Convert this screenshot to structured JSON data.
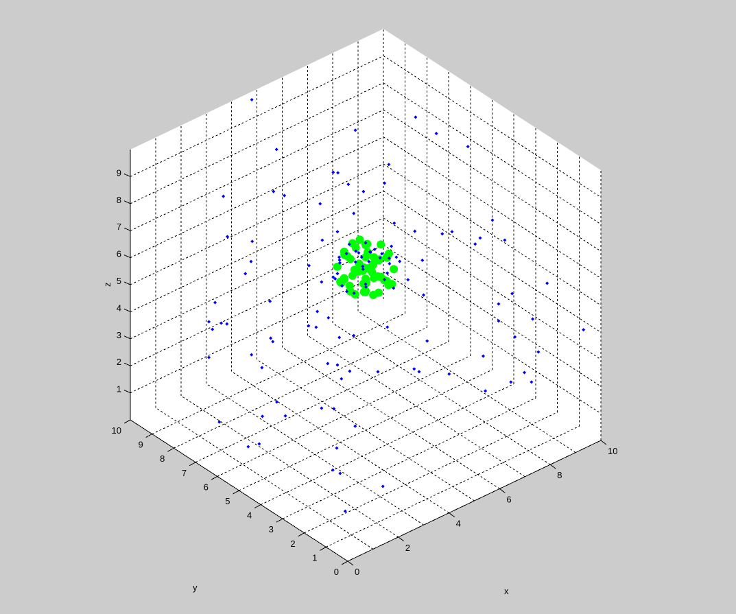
{
  "chart_data": {
    "type": "scatter3d",
    "title": "",
    "xlabel": "x",
    "ylabel": "y",
    "zlabel": "z",
    "xlim": [
      0,
      10
    ],
    "ylim": [
      0,
      10
    ],
    "zlim": [
      0,
      10
    ],
    "xticks": [
      "0",
      "2",
      "4",
      "6",
      "8",
      "10"
    ],
    "xtick_values": [
      0,
      2,
      4,
      6,
      8,
      10
    ],
    "yticks": [
      "0",
      "1",
      "2",
      "3",
      "4",
      "5",
      "6",
      "7",
      "8",
      "9",
      "10"
    ],
    "ytick_values": [
      0,
      1,
      2,
      3,
      4,
      5,
      6,
      7,
      8,
      9,
      10
    ],
    "zticks": [
      "1",
      "2",
      "3",
      "4",
      "5",
      "6",
      "7",
      "8",
      "9"
    ],
    "ztick_values": [
      1,
      2,
      3,
      4,
      5,
      6,
      7,
      8,
      9
    ],
    "grid": true,
    "view": "az -45, el 30 (origin toward viewer)",
    "series": [
      {
        "color": "#00ff00",
        "marker": "filled circle",
        "points": [
          [
            5.0,
            5.0,
            6.85
          ],
          [
            5.0,
            5.0,
            5.15
          ],
          [
            5.85,
            5.0,
            6.0
          ],
          [
            4.15,
            5.0,
            6.0
          ],
          [
            5.0,
            5.85,
            6.0
          ],
          [
            5.0,
            4.15,
            6.0
          ],
          [
            5.6,
            5.0,
            6.6
          ],
          [
            4.4,
            5.0,
            6.6
          ],
          [
            5.0,
            5.6,
            6.6
          ],
          [
            5.0,
            4.4,
            6.6
          ],
          [
            5.6,
            5.0,
            5.4
          ],
          [
            4.4,
            5.0,
            5.4
          ],
          [
            5.0,
            5.6,
            5.4
          ],
          [
            5.0,
            4.4,
            5.4
          ],
          [
            5.6,
            5.6,
            6.0
          ],
          [
            4.4,
            4.4,
            6.0
          ],
          [
            5.6,
            4.4,
            6.0
          ],
          [
            4.4,
            5.6,
            6.0
          ],
          [
            5.45,
            5.45,
            6.45
          ],
          [
            4.55,
            4.55,
            6.45
          ],
          [
            5.45,
            4.55,
            6.45
          ],
          [
            4.55,
            5.45,
            6.45
          ],
          [
            5.45,
            5.45,
            5.55
          ],
          [
            4.55,
            4.55,
            5.55
          ],
          [
            5.45,
            4.55,
            5.55
          ],
          [
            4.55,
            5.45,
            5.55
          ],
          [
            5.3,
            5.0,
            6.0
          ],
          [
            4.7,
            5.0,
            6.0
          ],
          [
            5.0,
            5.3,
            6.0
          ],
          [
            5.0,
            4.7,
            6.0
          ],
          [
            5.0,
            5.0,
            6.4
          ],
          [
            5.0,
            5.0,
            5.6
          ],
          [
            5.8,
            5.3,
            5.8
          ],
          [
            5.3,
            5.8,
            6.2
          ],
          [
            4.2,
            4.8,
            5.8
          ],
          [
            4.8,
            4.2,
            6.2
          ],
          [
            5.7,
            4.6,
            5.3
          ],
          [
            4.6,
            5.7,
            5.3
          ],
          [
            5.2,
            5.2,
            5.25
          ],
          [
            4.9,
            4.9,
            5.2
          ],
          [
            5.75,
            4.8,
            6.3
          ],
          [
            4.8,
            5.75,
            6.3
          ],
          [
            4.3,
            5.3,
            5.6
          ],
          [
            5.3,
            4.3,
            5.6
          ],
          [
            5.4,
            5.6,
            5.4
          ],
          [
            5.6,
            5.4,
            5.6
          ],
          [
            4.7,
            4.3,
            5.5
          ],
          [
            4.3,
            4.7,
            6.4
          ],
          [
            5.5,
            5.2,
            5.3
          ],
          [
            5.2,
            5.5,
            6.7
          ],
          [
            4.5,
            4.9,
            5.3
          ],
          [
            4.9,
            4.5,
            6.7
          ]
        ]
      },
      {
        "color": "#0000ff",
        "marker": "point",
        "points": [
          [
            4.8,
            10.0,
            9.7
          ],
          [
            3.62,
            7.49,
            9.7
          ],
          [
            1.76,
            7.77,
            8.65
          ],
          [
            2.9,
            6.79,
            8.83
          ],
          [
            3.15,
            6.58,
            8.68
          ],
          [
            1.85,
            7.69,
            7.16
          ],
          [
            2.42,
            7.21,
            6.98
          ],
          [
            2.39,
            7.23,
            6.24
          ],
          [
            2.26,
            7.34,
            5.79
          ],
          [
            1.57,
            7.93,
            4.72
          ],
          [
            2.82,
            6.86,
            4.77
          ],
          [
            1.43,
            8.05,
            4.01
          ],
          [
            1.51,
            7.98,
            3.73
          ],
          [
            1.71,
            7.81,
            3.96
          ],
          [
            1.84,
            7.7,
            3.93
          ],
          [
            1.43,
            8.05,
            2.69
          ],
          [
            2.4,
            7.22,
            2.79
          ],
          [
            2.84,
            6.85,
            3.4
          ],
          [
            2.89,
            6.81,
            3.27
          ],
          [
            2.64,
            7.02,
            2.31
          ],
          [
            4.26,
            5.63,
            9.54
          ],
          [
            4.37,
            5.54,
            9.52
          ],
          [
            6.09,
            6.74,
            9.7
          ],
          [
            4.61,
            5.34,
            9.09
          ],
          [
            4.95,
            5.04,
            8.83
          ],
          [
            3.96,
            5.88,
            8.38
          ],
          [
            4.73,
            5.23,
            8.02
          ],
          [
            4.01,
            5.84,
            7.03
          ],
          [
            3.71,
            6.1,
            6.09
          ],
          [
            4.0,
            5.86,
            5.48
          ],
          [
            5.65,
            4.69,
            9.7
          ],
          [
            5.43,
            4.63,
            9.14
          ],
          [
            5.65,
            4.44,
            7.66
          ],
          [
            5.59,
            4.5,
            6.8
          ],
          [
            5.97,
            4.18,
            5.56
          ],
          [
            6.29,
            3.89,
            6.29
          ],
          [
            5.64,
            4.46,
            5.25
          ],
          [
            7.92,
            6.1,
            9.7
          ],
          [
            7.82,
            5.03,
            9.7
          ],
          [
            8.08,
            3.88,
            9.7
          ],
          [
            6.12,
            4.04,
            7.36
          ],
          [
            6.75,
            3.51,
            7.26
          ],
          [
            6.97,
            3.32,
            7.34
          ],
          [
            7.89,
            2.53,
            7.77
          ],
          [
            7.61,
            2.77,
            7.11
          ],
          [
            7.5,
            2.87,
            6.88
          ],
          [
            8.17,
            2.29,
            7.03
          ],
          [
            9.14,
            1.47,
            5.43
          ],
          [
            8.34,
            2.15,
            5.05
          ],
          [
            8.03,
            2.41,
            4.67
          ],
          [
            6.32,
            3.87,
            5.0
          ],
          [
            8.81,
            1.75,
            4.11
          ],
          [
            8.03,
            2.41,
            4.04
          ],
          [
            8.4,
            2.09,
            3.45
          ],
          [
            9.95,
            0.74,
            3.73
          ],
          [
            8.94,
            1.64,
            2.89
          ],
          [
            7.68,
            2.71,
            2.74
          ],
          [
            8.62,
            1.91,
            2.13
          ],
          [
            8.31,
            2.17,
            1.78
          ],
          [
            8.78,
            1.77,
            1.78
          ],
          [
            6.9,
            3.37,
            2.08
          ],
          [
            7.73,
            2.67,
            1.45
          ],
          [
            6.4,
            3.8,
            3.3
          ],
          [
            5.5,
            4.58,
            3.81
          ],
          [
            6.11,
            4.06,
            2.26
          ],
          [
            6.22,
            3.96,
            2.16
          ],
          [
            5.28,
            4.76,
            2.16
          ],
          [
            3.9,
            5.94,
            4.39
          ],
          [
            3.7,
            6.11,
            3.86
          ],
          [
            3.87,
            5.96,
            3.81
          ],
          [
            4.15,
            5.72,
            4.16
          ],
          [
            4.4,
            5.51,
            3.43
          ],
          [
            4.73,
            5.23,
            3.5
          ],
          [
            4.14,
            5.74,
            2.46
          ],
          [
            4.36,
            5.55,
            2.41
          ],
          [
            4.64,
            5.31,
            2.18
          ],
          [
            4.45,
            5.47,
            1.9
          ],
          [
            2.98,
            6.73,
            1.04
          ],
          [
            3.17,
            6.56,
            0.53
          ],
          [
            2.65,
            7.01,
            0.51
          ],
          [
            4.0,
            5.86,
            0.81
          ],
          [
            4.28,
            5.62,
            0.79
          ],
          [
            4.76,
            5.2,
            0.15
          ],
          [
            1.67,
            7.85,
            0.3
          ],
          [
            1.65,
            6.5,
            0.1
          ],
          [
            2.0,
            6.4,
            0.1
          ],
          [
            3.62,
            4.72,
            0.1
          ],
          [
            2.76,
            3.9,
            0.1
          ],
          [
            2.81,
            3.62,
            0.1
          ],
          [
            3.33,
            2.26,
            0.1
          ],
          [
            1.6,
            1.98,
            0.1
          ],
          [
            4.36,
            5.55,
            7.34
          ],
          [
            5.0,
            5.0,
            6.93
          ],
          [
            5.78,
            4.34,
            6.24
          ],
          [
            4.36,
            5.55,
            5.79
          ],
          [
            4.26,
            5.63,
            5.66
          ],
          [
            4.5,
            5.3,
            6.6
          ],
          [
            4.7,
            5.1,
            6.7
          ],
          [
            5.0,
            4.8,
            6.7
          ],
          [
            5.3,
            4.6,
            6.6
          ],
          [
            5.5,
            4.5,
            6.4
          ],
          [
            4.4,
            5.5,
            6.3
          ],
          [
            4.6,
            5.0,
            6.4
          ],
          [
            4.9,
            5.2,
            6.5
          ],
          [
            5.2,
            5.0,
            6.5
          ],
          [
            5.4,
            4.8,
            6.3
          ],
          [
            4.5,
            5.6,
            6.1
          ],
          [
            4.8,
            4.9,
            6.2
          ],
          [
            5.1,
            5.3,
            6.2
          ],
          [
            5.6,
            4.6,
            6.1
          ],
          [
            4.3,
            5.4,
            6.5
          ],
          [
            5.7,
            4.4,
            6.4
          ],
          [
            4.7,
            5.4,
            6.8
          ],
          [
            5.1,
            4.7,
            6.8
          ],
          [
            4.9,
            5.0,
            6.0
          ],
          [
            5.3,
            5.2,
            6.0
          ],
          [
            4.4,
            5.7,
            5.5
          ],
          [
            4.5,
            5.5,
            5.3
          ],
          [
            5.0,
            5.0,
            5.4
          ],
          [
            4.6,
            5.4,
            5.1
          ],
          [
            5.4,
            4.6,
            5.6
          ],
          [
            5.1,
            5.1,
            5.2
          ],
          [
            5.6,
            4.7,
            5.7
          ],
          [
            4.8,
            5.3,
            5.0
          ]
        ]
      }
    ]
  }
}
